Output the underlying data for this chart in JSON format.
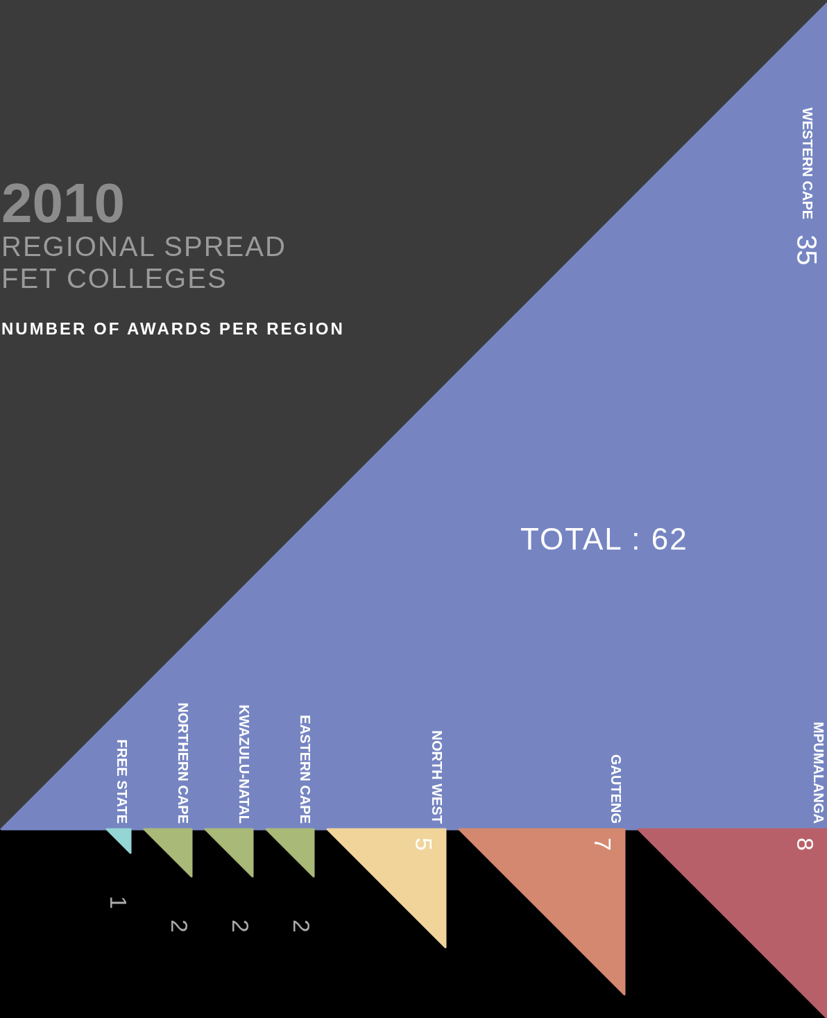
{
  "chart_data": {
    "type": "other",
    "title": "2010",
    "subtitle": "REGIONAL SPREAD FET COLLEGES",
    "annotations": [
      "NUMBER OF AWARDS PER REGION",
      "TOTAL : 62"
    ],
    "categories": [
      "WESTERN CAPE",
      "FREE STATE",
      "NORTHERN CAPE",
      "KWAZULU-NATAL",
      "EASTERN CAPE",
      "NORTH WEST",
      "GAUTENG",
      "MPUMALANGA"
    ],
    "values": [
      35,
      1,
      2,
      2,
      2,
      5,
      7,
      8
    ],
    "colors": [
      "#7685c2",
      "#93d6d4",
      "#a9b977",
      "#a9b977",
      "#a9b977",
      "#f0d49a",
      "#d3886f",
      "#b86069"
    ],
    "data_labels": true
  }
}
